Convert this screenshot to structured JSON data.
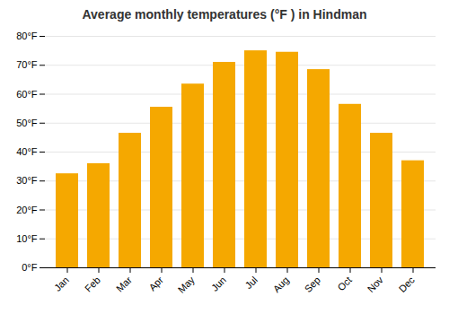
{
  "chart_data": {
    "type": "bar",
    "title": "Average monthly temperatures (°F ) in Hindman",
    "categories": [
      "Jan",
      "Feb",
      "Mar",
      "Apr",
      "May",
      "Jun",
      "Jul",
      "Aug",
      "Sep",
      "Oct",
      "Nov",
      "Dec"
    ],
    "values": [
      32.5,
      36.0,
      46.5,
      55.5,
      63.5,
      71.0,
      75.0,
      74.5,
      68.5,
      56.5,
      46.5,
      37.0
    ],
    "color": "#F5A800",
    "ylim": [
      0,
      80
    ],
    "yticks": [
      {
        "value": 0,
        "label": "0°F"
      },
      {
        "value": 10,
        "label": "10°F"
      },
      {
        "value": 20,
        "label": "20°F"
      },
      {
        "value": 30,
        "label": "30°F"
      },
      {
        "value": 40,
        "label": "40°F"
      },
      {
        "value": 50,
        "label": "50°F"
      },
      {
        "value": 60,
        "label": "60°F"
      },
      {
        "value": 70,
        "label": "70°F"
      },
      {
        "value": 80,
        "label": "80°F"
      }
    ],
    "grid": true
  }
}
